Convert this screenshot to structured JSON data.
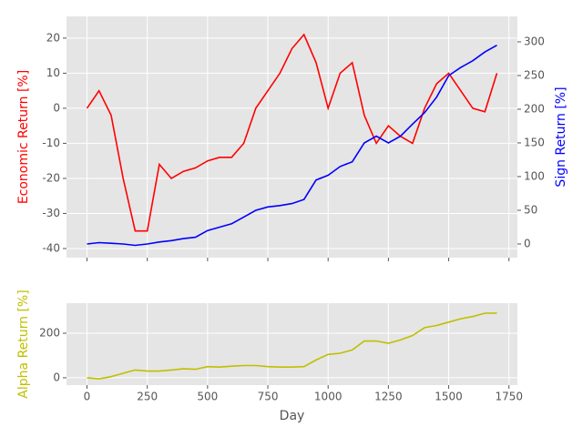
{
  "chart_data": [
    {
      "type": "line",
      "ylabel": "Economic Return [%]",
      "y2label": "Sign Return [%]",
      "x": [
        0,
        50,
        100,
        150,
        200,
        250,
        300,
        350,
        400,
        450,
        500,
        550,
        600,
        650,
        700,
        750,
        800,
        850,
        900,
        950,
        1000,
        1050,
        1100,
        1150,
        1200,
        1250,
        1300,
        1350,
        1400,
        1450,
        1500,
        1550,
        1600,
        1650,
        1700
      ],
      "series": [
        {
          "name": "Economic Return",
          "color": "#ff0000",
          "values": [
            0,
            5,
            -2,
            -20,
            -35,
            -35,
            -16,
            -20,
            -18,
            -17,
            -15,
            -14,
            -14,
            -10,
            0,
            5,
            10,
            17,
            21,
            13,
            0,
            10,
            13,
            -2,
            -10,
            -5,
            -8,
            -10,
            0,
            7,
            10,
            5,
            0,
            -1,
            10
          ]
        },
        {
          "name": "Sign Return",
          "color": "#0000ff",
          "axis": "y2",
          "values": [
            0,
            2,
            1,
            0,
            -2,
            0,
            3,
            5,
            8,
            10,
            20,
            25,
            30,
            40,
            50,
            55,
            57,
            60,
            66,
            95,
            102,
            115,
            122,
            150,
            160,
            150,
            160,
            178,
            195,
            218,
            250,
            262,
            272,
            285,
            295
          ]
        }
      ],
      "xlim": [
        -85,
        1785
      ],
      "xticks": [
        0,
        250,
        500,
        750,
        1000,
        1250,
        1500,
        1750
      ],
      "ylim": [
        -42.6,
        26.2
      ],
      "yticks": [
        -40,
        -30,
        -20,
        -10,
        0,
        10,
        20
      ],
      "y2lim": [
        -20.3,
        337.8
      ],
      "y2ticks": [
        0,
        50,
        100,
        150,
        200,
        250,
        300
      ],
      "grid": true
    },
    {
      "type": "line",
      "xlabel": "Day",
      "ylabel": "Alpha Return [%]",
      "x": [
        0,
        50,
        100,
        150,
        200,
        250,
        300,
        350,
        400,
        450,
        500,
        550,
        600,
        650,
        700,
        750,
        800,
        850,
        900,
        950,
        1000,
        1050,
        1100,
        1150,
        1200,
        1250,
        1300,
        1350,
        1400,
        1450,
        1500,
        1550,
        1600,
        1650,
        1700
      ],
      "series": [
        {
          "name": "Alpha Return",
          "color": "#bfbf00",
          "values": [
            0,
            -5,
            5,
            20,
            35,
            30,
            30,
            35,
            40,
            38,
            50,
            48,
            52,
            55,
            55,
            50,
            48,
            48,
            50,
            80,
            105,
            110,
            125,
            165,
            165,
            155,
            170,
            190,
            225,
            235,
            250,
            265,
            275,
            290,
            290
          ]
        }
      ],
      "xlim": [
        -85,
        1785
      ],
      "xticks": [
        0,
        250,
        500,
        750,
        1000,
        1250,
        1500,
        1750
      ],
      "ylim": [
        -33,
        335
      ],
      "yticks": [
        0,
        200
      ],
      "grid": true
    }
  ]
}
